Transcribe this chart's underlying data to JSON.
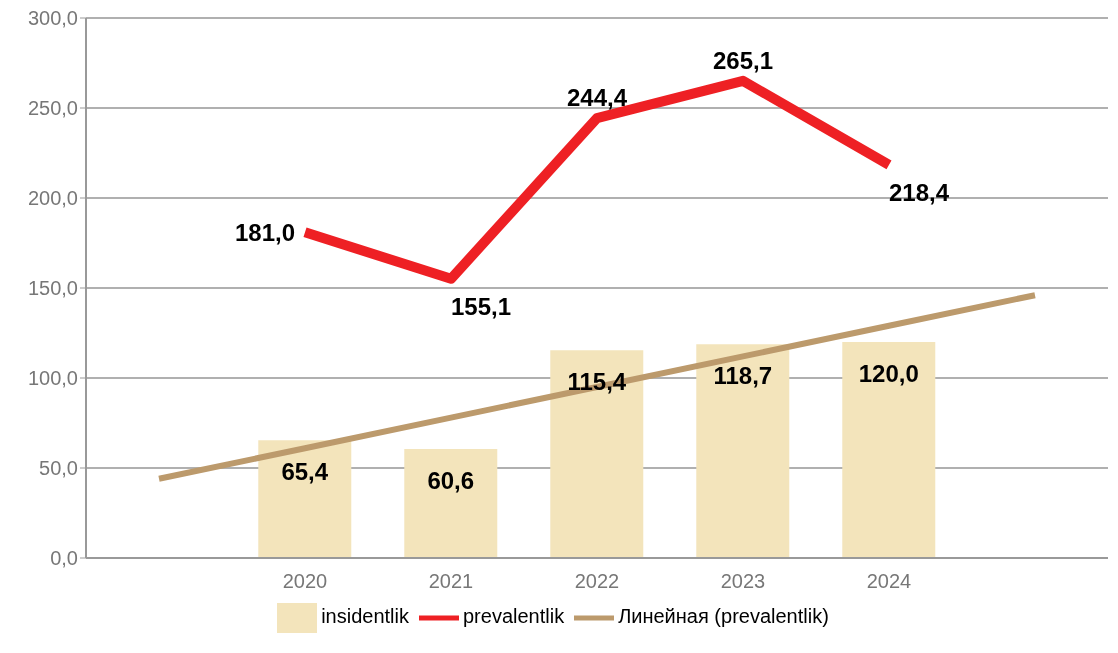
{
  "chart_data": {
    "type": "bar",
    "categories": [
      null,
      "2020",
      "2021",
      "2022",
      "2023",
      "2024",
      null
    ],
    "series": [
      {
        "name": "insidentlik",
        "type": "bar",
        "color": "#f3e4bb",
        "values": [
          null,
          65.4,
          60.6,
          115.4,
          118.7,
          120.0,
          null
        ],
        "value_labels": [
          null,
          "65,4",
          "60,6",
          "115,4",
          "118,7",
          "120,0",
          null
        ]
      },
      {
        "name": "prevalentlik",
        "type": "line",
        "color": "#ee2024",
        "values": [
          null,
          181.0,
          155.1,
          244.4,
          265.1,
          218.4,
          null
        ],
        "value_labels": [
          null,
          "181,0",
          "155,1",
          "244,4",
          "265,1",
          "218,4",
          null
        ]
      },
      {
        "name": "Линейная (prevalentlik)",
        "type": "line",
        "color": "#bc9a6c",
        "values": [
          44,
          61,
          78,
          95,
          112,
          129,
          146
        ]
      }
    ],
    "ylim": [
      0,
      300
    ],
    "yticks": [
      {
        "value": 0,
        "label": "0,0"
      },
      {
        "value": 50,
        "label": "50,0"
      },
      {
        "value": 100,
        "label": "100,0"
      },
      {
        "value": 150,
        "label": "150,0"
      },
      {
        "value": 200,
        "label": "200,0"
      },
      {
        "value": 250,
        "label": "250,0"
      },
      {
        "value": 300,
        "label": "300,0"
      }
    ],
    "grid": "y",
    "legend": "bottom",
    "marker": "none",
    "line_style": "solid"
  }
}
